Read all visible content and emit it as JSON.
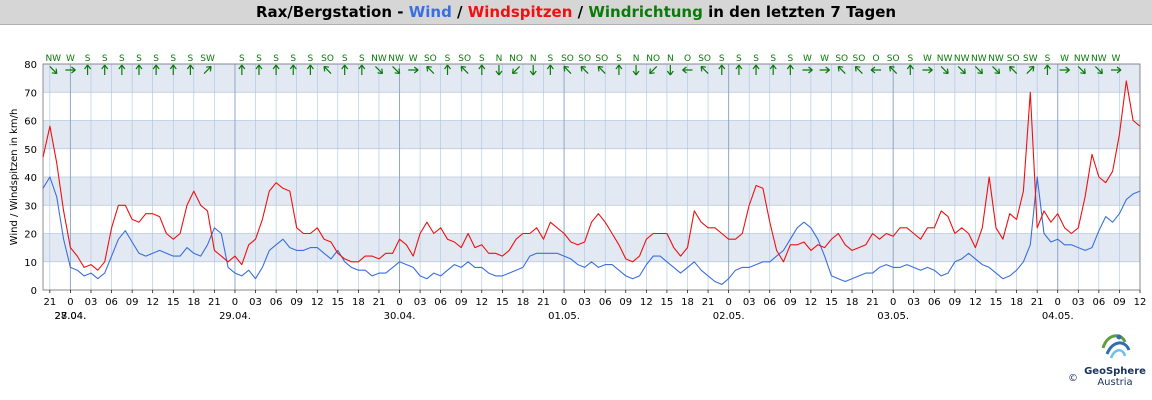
{
  "title": {
    "station": "Rax/Bergstation - ",
    "wind": "Wind",
    "sep1": " / ",
    "gust": "Windspitzen",
    "sep2": " / ",
    "dir": "Windrichtung",
    "suffix": " in den letzten 7 Tagen"
  },
  "colors": {
    "wind": "#3a6fe0",
    "gust": "#ee1111",
    "dir": "#0a7a0a",
    "band": "#e3e9f2",
    "grid": "#a8c4e0"
  },
  "logo": {
    "name": "GeoSphere",
    "country": "Austria",
    "copyright": "©"
  },
  "chart_data": {
    "type": "line",
    "ylabel": "Wind / Windspitzen in km/h",
    "ylim": [
      0,
      80
    ],
    "yticks": [
      0,
      10,
      20,
      30,
      40,
      50,
      60,
      70,
      80
    ],
    "x_start_hour": 20,
    "x_range_hours": 160,
    "xtick_hours": [
      21,
      0,
      3,
      6,
      9,
      12,
      15,
      18
    ],
    "date_labels": [
      "27.04.",
      "28.04.",
      "29.04.",
      "30.04.",
      "01.05.",
      "02.05.",
      "03.05.",
      "04.05."
    ],
    "series": [
      {
        "name": "Wind",
        "color": "#3a6fe0",
        "x": [
          0,
          1,
          2,
          3,
          4,
          5,
          6,
          7,
          8,
          9,
          10,
          11,
          12,
          13,
          14,
          15,
          16,
          17,
          18,
          19,
          20,
          21,
          22,
          23,
          24,
          25,
          26,
          27,
          28,
          29,
          30,
          31,
          32,
          33,
          34,
          35,
          36,
          37,
          38,
          39,
          40,
          41,
          42,
          43,
          44,
          45,
          46,
          47,
          48,
          49,
          50,
          51,
          52,
          53,
          54,
          55,
          56,
          57,
          58,
          59,
          60,
          61,
          62,
          63,
          64,
          65,
          66,
          67,
          68,
          69,
          70,
          71,
          72,
          73,
          74,
          75,
          76,
          77,
          78,
          79,
          80,
          81,
          82,
          83,
          84,
          85,
          86,
          87,
          88,
          89,
          90,
          91,
          92,
          93,
          94,
          95,
          96,
          97,
          98,
          99,
          100,
          101,
          102,
          103,
          104,
          105,
          106,
          107,
          108,
          109,
          110,
          111,
          112,
          113,
          114,
          115,
          116,
          117,
          118,
          119,
          120,
          121,
          122,
          123,
          124,
          125,
          126,
          127,
          128,
          129,
          130,
          131,
          132,
          133,
          134,
          135,
          136,
          137,
          138,
          139,
          140,
          141,
          142,
          143,
          144,
          145,
          146,
          147,
          148,
          149,
          150,
          151,
          152,
          153,
          154,
          155,
          156,
          157,
          158,
          159,
          160
        ],
        "values": [
          36,
          40,
          33,
          18,
          8,
          7,
          5,
          6,
          4,
          6,
          12,
          18,
          21,
          17,
          13,
          12,
          13,
          14,
          13,
          12,
          12,
          15,
          13,
          12,
          16,
          22,
          20,
          8,
          6,
          5,
          7,
          4,
          8,
          14,
          16,
          18,
          15,
          14,
          14,
          15,
          15,
          13,
          11,
          14,
          10,
          8,
          7,
          7,
          5,
          6,
          6,
          8,
          10,
          9,
          8,
          5,
          4,
          6,
          5,
          7,
          9,
          8,
          10,
          8,
          8,
          6,
          5,
          5,
          6,
          7,
          8,
          12,
          13,
          13,
          13,
          13,
          12,
          11,
          9,
          8,
          10,
          8,
          9,
          9,
          7,
          5,
          4,
          5,
          9,
          12,
          12,
          10,
          8,
          6,
          8,
          10,
          7,
          5,
          3,
          2,
          4,
          7,
          8,
          8,
          9,
          10,
          10,
          12,
          14,
          18,
          22,
          24,
          22,
          18,
          12,
          5,
          4,
          3,
          4,
          5,
          6,
          6,
          8,
          9,
          8,
          8,
          9,
          8,
          7,
          8,
          7,
          5,
          6,
          10,
          11,
          13,
          11,
          9,
          8,
          6,
          4,
          5,
          7,
          10,
          16,
          40,
          20,
          17,
          18,
          16,
          16,
          15,
          14,
          15,
          21,
          26,
          24,
          27,
          32,
          34,
          35
        ]
      },
      {
        "name": "Windspitzen",
        "color": "#ee1111",
        "x": [
          0,
          1,
          2,
          3,
          4,
          5,
          6,
          7,
          8,
          9,
          10,
          11,
          12,
          13,
          14,
          15,
          16,
          17,
          18,
          19,
          20,
          21,
          22,
          23,
          24,
          25,
          26,
          27,
          28,
          29,
          30,
          31,
          32,
          33,
          34,
          35,
          36,
          37,
          38,
          39,
          40,
          41,
          42,
          43,
          44,
          45,
          46,
          47,
          48,
          49,
          50,
          51,
          52,
          53,
          54,
          55,
          56,
          57,
          58,
          59,
          60,
          61,
          62,
          63,
          64,
          65,
          66,
          67,
          68,
          69,
          70,
          71,
          72,
          73,
          74,
          75,
          76,
          77,
          78,
          79,
          80,
          81,
          82,
          83,
          84,
          85,
          86,
          87,
          88,
          89,
          90,
          91,
          92,
          93,
          94,
          95,
          96,
          97,
          98,
          99,
          100,
          101,
          102,
          103,
          104,
          105,
          106,
          107,
          108,
          109,
          110,
          111,
          112,
          113,
          114,
          115,
          116,
          117,
          118,
          119,
          120,
          121,
          122,
          123,
          124,
          125,
          126,
          127,
          128,
          129,
          130,
          131,
          132,
          133,
          134,
          135,
          136,
          137,
          138,
          139,
          140,
          141,
          142,
          143,
          144,
          145,
          146,
          147,
          148,
          149,
          150,
          151,
          152,
          153,
          154,
          155,
          156,
          157,
          158,
          159,
          160
        ],
        "values": [
          47,
          58,
          45,
          28,
          15,
          12,
          8,
          9,
          7,
          10,
          22,
          30,
          30,
          25,
          24,
          27,
          27,
          26,
          20,
          18,
          20,
          30,
          35,
          30,
          28,
          14,
          12,
          10,
          12,
          9,
          16,
          18,
          25,
          35,
          38,
          36,
          35,
          22,
          20,
          20,
          22,
          18,
          17,
          13,
          11,
          10,
          10,
          12,
          12,
          11,
          13,
          13,
          18,
          16,
          12,
          20,
          24,
          20,
          22,
          18,
          17,
          15,
          20,
          15,
          16,
          13,
          13,
          12,
          14,
          18,
          20,
          20,
          22,
          18,
          24,
          22,
          20,
          17,
          16,
          17,
          24,
          27,
          24,
          20,
          16,
          11,
          10,
          12,
          18,
          20,
          20,
          20,
          15,
          12,
          15,
          28,
          24,
          22,
          22,
          20,
          18,
          18,
          20,
          30,
          37,
          36,
          24,
          14,
          10,
          16,
          16,
          17,
          14,
          16,
          15,
          18,
          20,
          16,
          14,
          15,
          16,
          20,
          18,
          20,
          19,
          22,
          22,
          20,
          18,
          22,
          22,
          28,
          26,
          20,
          22,
          20,
          15,
          22,
          40,
          22,
          18,
          27,
          25,
          35,
          70,
          22,
          28,
          24,
          27,
          22,
          20,
          22,
          33,
          48,
          40,
          38,
          42,
          55,
          74,
          60,
          58
        ]
      }
    ],
    "direction_labels": [
      "NW",
      "W",
      "S",
      "S",
      "S",
      "S",
      "S",
      "S",
      "S",
      "SW",
      "S",
      "S",
      "S",
      "S",
      "S",
      "SO",
      "S",
      "S",
      "NW",
      "NW",
      "W",
      "SO",
      "S",
      "SO",
      "S",
      "N",
      "NO",
      "N",
      "S",
      "SO",
      "SO",
      "SO",
      "S",
      "N",
      "NO",
      "N",
      "O",
      "SO",
      "S",
      "S",
      "S",
      "S",
      "S",
      "W",
      "W",
      "SO",
      "SO",
      "O",
      "SO",
      "S",
      "W",
      "NW",
      "NW",
      "NW",
      "NW",
      "SO",
      "SW",
      "S",
      "W",
      "NW",
      "NW",
      "W"
    ],
    "direction_x": [
      1.5,
      4,
      6.5,
      9,
      11.5,
      14,
      16.5,
      19,
      21.5,
      24,
      29,
      31.5,
      34,
      36.5,
      39,
      41.5,
      44,
      46.5,
      49,
      51.5,
      54,
      56.5,
      59,
      61.5,
      64,
      66.5,
      69,
      71.5,
      74,
      76.5,
      79,
      81.5,
      84,
      86.5,
      89,
      91.5,
      94,
      96.5,
      99,
      101.5,
      104,
      106.5,
      109,
      111.5,
      114,
      116.5,
      119,
      121.5,
      124,
      126.5,
      129,
      131.5,
      134,
      136.5,
      139,
      141.5,
      144,
      146.5,
      149,
      151.5,
      154,
      156.5
    ]
  }
}
